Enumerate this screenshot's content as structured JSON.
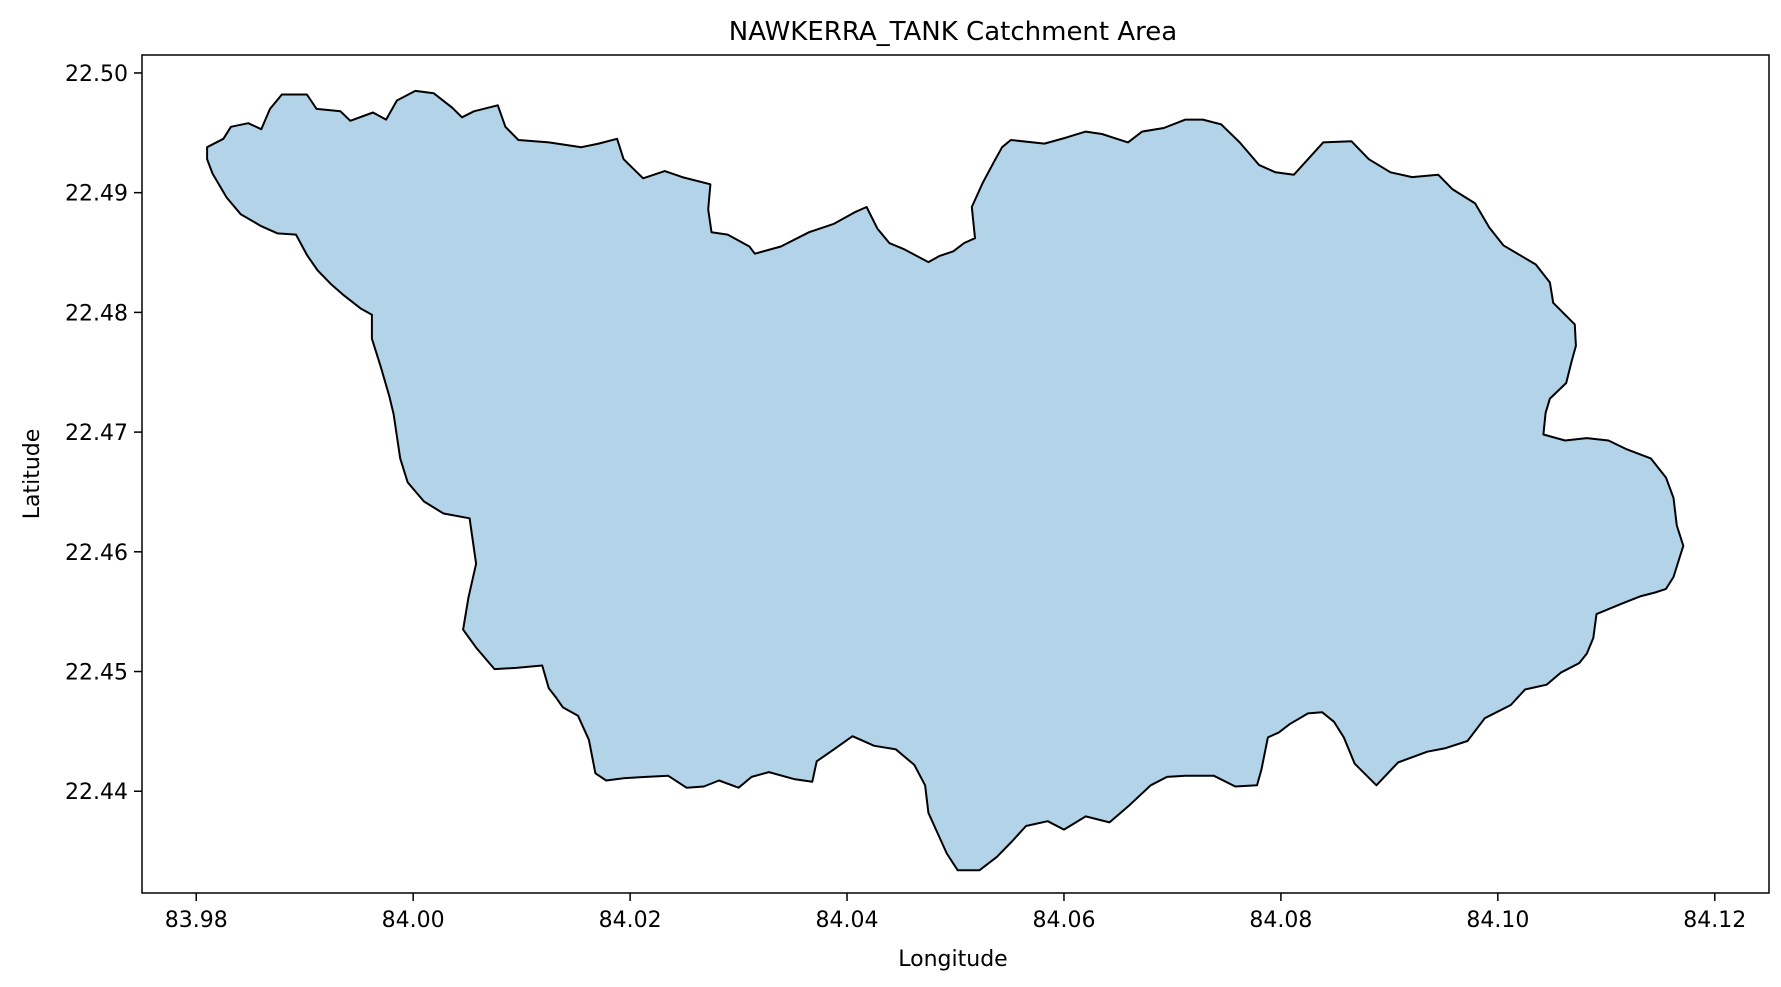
{
  "chart_data": {
    "type": "map",
    "title": "NAWKERRA_TANK Catchment Area",
    "xlabel": "Longitude",
    "ylabel": "Latitude",
    "xlim": [
      83.975,
      84.125
    ],
    "ylim": [
      22.4315,
      22.5015
    ],
    "x_ticks": [
      "83.98",
      "84.00",
      "84.02",
      "84.04",
      "84.06",
      "84.08",
      "84.10",
      "84.12"
    ],
    "y_ticks": [
      "22.44",
      "22.45",
      "22.46",
      "22.47",
      "22.48",
      "22.49",
      "22.50"
    ],
    "grid": false,
    "fill_color": "#b3d4e8",
    "edge_color": "#000000",
    "polygon": [
      [
        83.981,
        22.4938
      ],
      [
        83.9825,
        22.4945
      ],
      [
        83.9832,
        22.4955
      ],
      [
        83.9848,
        22.4958
      ],
      [
        83.986,
        22.4953
      ],
      [
        83.9868,
        22.497
      ],
      [
        83.9879,
        22.4982
      ],
      [
        83.9902,
        22.4982
      ],
      [
        83.9911,
        22.497
      ],
      [
        83.9933,
        22.4968
      ],
      [
        83.9942,
        22.496
      ],
      [
        83.9963,
        22.4967
      ],
      [
        83.9975,
        22.4961
      ],
      [
        83.9985,
        22.4977
      ],
      [
        84.0002,
        22.4985
      ],
      [
        84.0019,
        22.4983
      ],
      [
        84.0036,
        22.4971
      ],
      [
        84.0045,
        22.4963
      ],
      [
        84.0056,
        22.4968
      ],
      [
        84.0078,
        22.4973
      ],
      [
        84.0085,
        22.4955
      ],
      [
        84.0097,
        22.4944
      ],
      [
        84.0125,
        22.4942
      ],
      [
        84.0155,
        22.4938
      ],
      [
        84.0171,
        22.4941
      ],
      [
        84.0188,
        22.4945
      ],
      [
        84.0194,
        22.4928
      ],
      [
        84.0212,
        22.4912
      ],
      [
        84.0232,
        22.4918
      ],
      [
        84.0248,
        22.4913
      ],
      [
        84.0274,
        22.4907
      ],
      [
        84.0272,
        22.4886
      ],
      [
        84.0275,
        22.4867
      ],
      [
        84.029,
        22.4865
      ],
      [
        84.031,
        22.4855
      ],
      [
        84.0315,
        22.4849
      ],
      [
        84.0339,
        22.4855
      ],
      [
        84.0365,
        22.4867
      ],
      [
        84.0388,
        22.4874
      ],
      [
        84.0408,
        22.4884
      ],
      [
        84.0418,
        22.4888
      ],
      [
        84.0428,
        22.487
      ],
      [
        84.0439,
        22.4858
      ],
      [
        84.0452,
        22.4853
      ],
      [
        84.0475,
        22.4842
      ],
      [
        84.0485,
        22.4847
      ],
      [
        84.0498,
        22.4851
      ],
      [
        84.0508,
        22.4858
      ],
      [
        84.0518,
        22.4862
      ],
      [
        84.0515,
        22.4888
      ],
      [
        84.0525,
        22.4908
      ],
      [
        84.0535,
        22.4925
      ],
      [
        84.0543,
        22.4938
      ],
      [
        84.0551,
        22.4944
      ],
      [
        84.0582,
        22.4941
      ],
      [
        84.0602,
        22.4946
      ],
      [
        84.062,
        22.4951
      ],
      [
        84.0635,
        22.4949
      ],
      [
        84.0659,
        22.4942
      ],
      [
        84.0672,
        22.4951
      ],
      [
        84.0692,
        22.4954
      ],
      [
        84.0712,
        22.4961
      ],
      [
        84.0728,
        22.4961
      ],
      [
        84.0745,
        22.4957
      ],
      [
        84.0762,
        22.4942
      ],
      [
        84.078,
        22.4923
      ],
      [
        84.0795,
        22.4917
      ],
      [
        84.0812,
        22.4915
      ],
      [
        84.0825,
        22.4928
      ],
      [
        84.0839,
        22.4942
      ],
      [
        84.0865,
        22.4943
      ],
      [
        84.0881,
        22.4928
      ],
      [
        84.0901,
        22.4917
      ],
      [
        84.0921,
        22.4913
      ],
      [
        84.0945,
        22.4915
      ],
      [
        84.0958,
        22.4903
      ],
      [
        84.0979,
        22.4891
      ],
      [
        84.0992,
        22.4871
      ],
      [
        84.1005,
        22.4856
      ],
      [
        84.1035,
        22.484
      ],
      [
        84.1048,
        22.4825
      ],
      [
        84.1051,
        22.4808
      ],
      [
        84.1071,
        22.479
      ],
      [
        84.1072,
        22.4772
      ],
      [
        84.1068,
        22.4759
      ],
      [
        84.1063,
        22.4741
      ],
      [
        84.1048,
        22.4728
      ],
      [
        84.1044,
        22.4716
      ],
      [
        84.1042,
        22.4698
      ],
      [
        84.1062,
        22.4693
      ],
      [
        84.1082,
        22.4695
      ],
      [
        84.1102,
        22.4693
      ],
      [
        84.1118,
        22.4686
      ],
      [
        84.1141,
        22.4678
      ],
      [
        84.1155,
        22.4662
      ],
      [
        84.1162,
        22.4645
      ],
      [
        84.1165,
        22.4622
      ],
      [
        84.1171,
        22.4605
      ],
      [
        84.1162,
        22.4579
      ],
      [
        84.1155,
        22.4569
      ],
      [
        84.1145,
        22.4566
      ],
      [
        84.1132,
        22.4563
      ],
      [
        84.1115,
        22.4557
      ],
      [
        84.1091,
        22.4548
      ],
      [
        84.1088,
        22.4528
      ],
      [
        84.1082,
        22.4515
      ],
      [
        84.1075,
        22.4507
      ],
      [
        84.1058,
        22.4499
      ],
      [
        84.1045,
        22.4489
      ],
      [
        84.1025,
        22.4485
      ],
      [
        84.1012,
        22.4472
      ],
      [
        84.0988,
        22.4461
      ],
      [
        84.0972,
        22.4442
      ],
      [
        84.0952,
        22.4436
      ],
      [
        84.0935,
        22.4433
      ],
      [
        84.0908,
        22.4424
      ],
      [
        84.0888,
        22.4405
      ],
      [
        84.0868,
        22.4423
      ],
      [
        84.0858,
        22.4445
      ],
      [
        84.0849,
        22.4458
      ],
      [
        84.0838,
        22.4466
      ],
      [
        84.0825,
        22.4465
      ],
      [
        84.0808,
        22.4456
      ],
      [
        84.0798,
        22.4449
      ],
      [
        84.0788,
        22.4445
      ],
      [
        84.0782,
        22.4418
      ],
      [
        84.0778,
        22.4405
      ],
      [
        84.0758,
        22.4404
      ],
      [
        84.0738,
        22.4413
      ],
      [
        84.0712,
        22.4413
      ],
      [
        84.0695,
        22.4412
      ],
      [
        84.068,
        22.4405
      ],
      [
        84.066,
        22.4388
      ],
      [
        84.0642,
        22.4374
      ],
      [
        84.062,
        22.4379
      ],
      [
        84.06,
        22.4368
      ],
      [
        84.0585,
        22.4375
      ],
      [
        84.0565,
        22.4371
      ],
      [
        84.0552,
        22.4358
      ],
      [
        84.0538,
        22.4345
      ],
      [
        84.0522,
        22.4334
      ],
      [
        84.0502,
        22.4334
      ],
      [
        84.0492,
        22.4348
      ],
      [
        84.0482,
        22.4368
      ],
      [
        84.0475,
        22.4382
      ],
      [
        84.0472,
        22.4405
      ],
      [
        84.0462,
        22.4422
      ],
      [
        84.0445,
        22.4435
      ],
      [
        84.0425,
        22.4438
      ],
      [
        84.0405,
        22.4446
      ],
      [
        84.0388,
        22.4435
      ],
      [
        84.0372,
        22.4425
      ],
      [
        84.0368,
        22.4408
      ],
      [
        84.0352,
        22.441
      ],
      [
        84.0328,
        22.4416
      ],
      [
        84.0312,
        22.4412
      ],
      [
        84.03,
        22.4403
      ],
      [
        84.0282,
        22.4409
      ],
      [
        84.0268,
        22.4404
      ],
      [
        84.0252,
        22.4403
      ],
      [
        84.0235,
        22.4413
      ],
      [
        84.0215,
        22.4412
      ],
      [
        84.0195,
        22.4411
      ],
      [
        84.0178,
        22.4409
      ],
      [
        84.0168,
        22.4415
      ],
      [
        84.0162,
        22.4443
      ],
      [
        84.0152,
        22.4463
      ],
      [
        84.0138,
        22.447
      ],
      [
        84.0132,
        22.4478
      ],
      [
        84.0125,
        22.4486
      ],
      [
        84.0119,
        22.4505
      ],
      [
        84.0095,
        22.4503
      ],
      [
        84.0075,
        22.4502
      ],
      [
        84.0058,
        22.452
      ],
      [
        84.0046,
        22.4535
      ],
      [
        84.0051,
        22.4562
      ],
      [
        84.0058,
        22.459
      ],
      [
        84.0052,
        22.4628
      ],
      [
        84.0028,
        22.4632
      ],
      [
        84.001,
        22.4642
      ],
      [
        83.9995,
        22.4658
      ],
      [
        83.9988,
        22.4678
      ],
      [
        83.9982,
        22.4715
      ],
      [
        83.9978,
        22.473
      ],
      [
        83.997,
        22.4755
      ],
      [
        83.9962,
        22.4778
      ],
      [
        83.9962,
        22.4798
      ],
      [
        83.9952,
        22.4803
      ],
      [
        83.9935,
        22.4815
      ],
      [
        83.9925,
        22.4823
      ],
      [
        83.9912,
        22.4835
      ],
      [
        83.9902,
        22.4848
      ],
      [
        83.9892,
        22.4865
      ],
      [
        83.9875,
        22.4866
      ],
      [
        83.986,
        22.4872
      ],
      [
        83.9841,
        22.4882
      ],
      [
        83.9828,
        22.4896
      ],
      [
        83.9815,
        22.4916
      ],
      [
        83.981,
        22.4928
      ],
      [
        83.981,
        22.4938
      ]
    ]
  }
}
